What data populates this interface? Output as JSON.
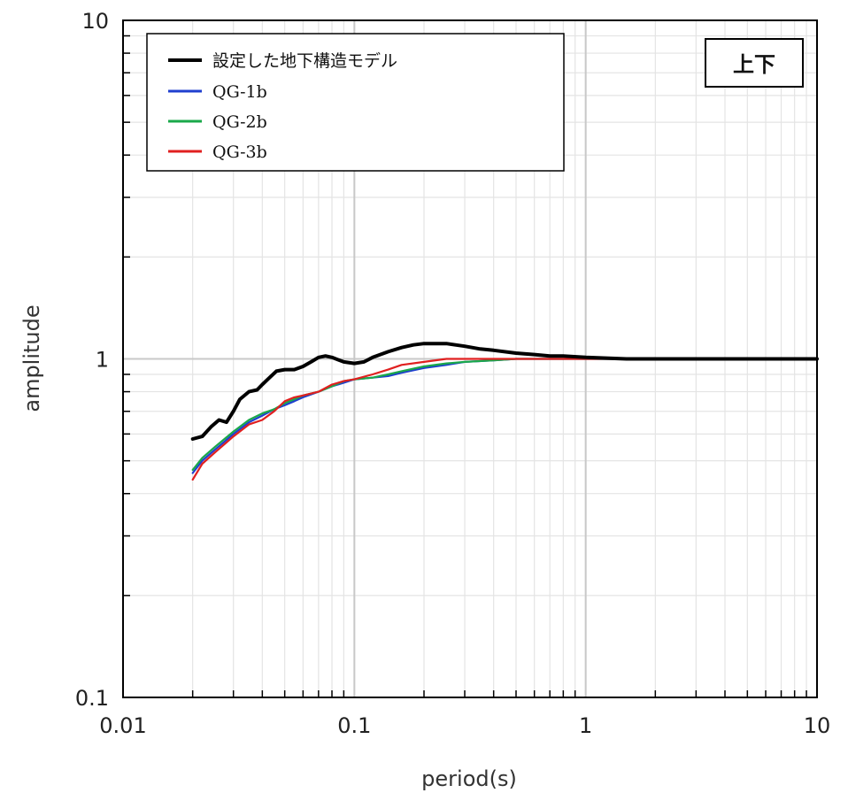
{
  "chart_data": {
    "type": "line",
    "xscale": "log",
    "yscale": "log",
    "xlim": [
      0.01,
      10
    ],
    "ylim": [
      0.1,
      10
    ],
    "grid": true,
    "xlabel": "period(s)",
    "ylabel": "amplitude",
    "x_ticks": [
      "0.01",
      "0.1",
      "1",
      "10"
    ],
    "y_ticks": [
      "0.1",
      "1",
      "10"
    ],
    "corner_label": "上下",
    "legend_position": "top-left",
    "series": [
      {
        "name": "設定した地下構造モデル",
        "color": "#000000",
        "x": [
          0.02,
          0.022,
          0.024,
          0.026,
          0.028,
          0.03,
          0.032,
          0.035,
          0.038,
          0.04,
          0.043,
          0.046,
          0.05,
          0.055,
          0.06,
          0.065,
          0.07,
          0.075,
          0.08,
          0.09,
          0.1,
          0.11,
          0.12,
          0.14,
          0.16,
          0.18,
          0.2,
          0.22,
          0.25,
          0.3,
          0.35,
          0.4,
          0.5,
          0.6,
          0.7,
          0.8,
          1.0,
          1.5,
          2,
          3,
          5,
          7,
          10
        ],
        "y": [
          0.58,
          0.59,
          0.63,
          0.66,
          0.65,
          0.7,
          0.76,
          0.8,
          0.81,
          0.84,
          0.88,
          0.92,
          0.93,
          0.93,
          0.95,
          0.98,
          1.01,
          1.02,
          1.01,
          0.98,
          0.97,
          0.98,
          1.01,
          1.05,
          1.08,
          1.1,
          1.11,
          1.11,
          1.11,
          1.09,
          1.07,
          1.06,
          1.04,
          1.03,
          1.02,
          1.02,
          1.01,
          1.0,
          1.0,
          1.0,
          1.0,
          1.0,
          1.0
        ]
      },
      {
        "name": "QG-1b",
        "color": "#1f3fcf",
        "x": [
          0.02,
          0.022,
          0.025,
          0.03,
          0.035,
          0.04,
          0.045,
          0.05,
          0.055,
          0.06,
          0.07,
          0.08,
          0.09,
          0.1,
          0.12,
          0.14,
          0.16,
          0.2,
          0.25,
          0.3,
          0.4,
          0.5,
          0.7,
          1.0,
          1.5,
          2,
          5,
          10
        ],
        "y": [
          0.46,
          0.5,
          0.54,
          0.6,
          0.65,
          0.68,
          0.71,
          0.73,
          0.75,
          0.77,
          0.8,
          0.83,
          0.85,
          0.87,
          0.88,
          0.89,
          0.91,
          0.94,
          0.96,
          0.98,
          0.99,
          1.0,
          1.0,
          1.0,
          1.0,
          1.0,
          1.0,
          1.0
        ]
      },
      {
        "name": "QG-2b",
        "color": "#1aa84a",
        "x": [
          0.02,
          0.022,
          0.025,
          0.03,
          0.035,
          0.04,
          0.045,
          0.05,
          0.055,
          0.06,
          0.07,
          0.08,
          0.09,
          0.1,
          0.12,
          0.14,
          0.16,
          0.2,
          0.25,
          0.3,
          0.4,
          0.5,
          0.7,
          1.0,
          1.5,
          2,
          5,
          10
        ],
        "y": [
          0.47,
          0.51,
          0.55,
          0.61,
          0.66,
          0.69,
          0.71,
          0.74,
          0.76,
          0.78,
          0.8,
          0.83,
          0.86,
          0.87,
          0.88,
          0.9,
          0.92,
          0.95,
          0.97,
          0.98,
          0.99,
          1.0,
          1.0,
          1.0,
          1.0,
          1.0,
          1.0,
          1.0
        ]
      },
      {
        "name": "QG-3b",
        "color": "#e02020",
        "x": [
          0.02,
          0.022,
          0.025,
          0.03,
          0.035,
          0.04,
          0.045,
          0.05,
          0.055,
          0.06,
          0.07,
          0.08,
          0.09,
          0.1,
          0.12,
          0.14,
          0.16,
          0.2,
          0.25,
          0.3,
          0.4,
          0.5,
          0.7,
          1.0,
          1.5,
          2,
          5,
          10
        ],
        "y": [
          0.44,
          0.49,
          0.53,
          0.59,
          0.64,
          0.66,
          0.7,
          0.75,
          0.77,
          0.78,
          0.8,
          0.84,
          0.86,
          0.87,
          0.9,
          0.93,
          0.96,
          0.98,
          1.0,
          1.0,
          1.0,
          1.0,
          1.0,
          1.0,
          1.0,
          1.0,
          1.0,
          1.0
        ]
      }
    ]
  }
}
